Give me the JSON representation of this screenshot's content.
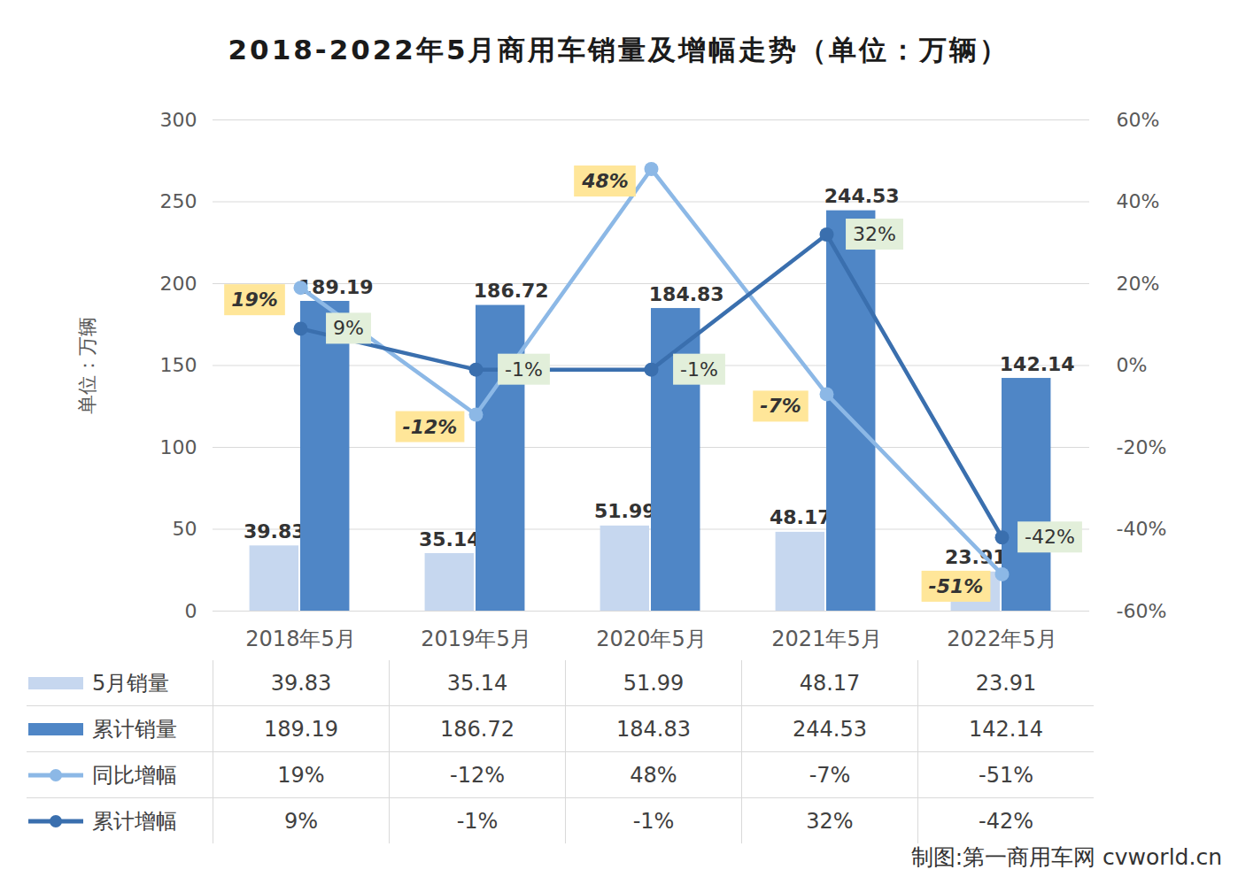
{
  "chart_data": {
    "type": "bar",
    "title": "2018-2022年5月商用车销量及增幅走势（单位：万辆）",
    "ylabel": "单位：万辆",
    "caption": "制图:第一商用车网 cvworld.cn",
    "categories": [
      "2018年5月",
      "2019年5月",
      "2020年5月",
      "2021年5月",
      "2022年5月"
    ],
    "series": [
      {
        "name": "5月销量",
        "type": "bar",
        "color": "#c6d7ef",
        "values": [
          39.83,
          35.14,
          51.99,
          48.17,
          23.91
        ]
      },
      {
        "name": "累计销量",
        "type": "bar",
        "color": "#4f86c6",
        "values": [
          189.19,
          186.72,
          184.83,
          244.53,
          142.14
        ]
      },
      {
        "name": "同比增幅",
        "type": "line",
        "axis": "y2",
        "color": "#8cb8e6",
        "marker": "circle",
        "values": [
          19,
          -12,
          48,
          -7,
          -51
        ],
        "value_labels": [
          "19%",
          "-12%",
          "48%",
          "-7%",
          "-51%"
        ]
      },
      {
        "name": "累计增幅",
        "type": "line",
        "axis": "y2",
        "color": "#3a6fae",
        "marker": "circle",
        "values": [
          9,
          -1,
          -1,
          32,
          -42
        ],
        "value_labels": [
          "9%",
          "-1%",
          "-1%",
          "32%",
          "-42%"
        ]
      }
    ],
    "ylim": [
      0,
      300
    ],
    "yticks": [
      0,
      50,
      100,
      150,
      200,
      250,
      300
    ],
    "y2lim": [
      -60,
      60
    ],
    "y2ticks": [
      {
        "value": -60,
        "label": "-60%"
      },
      {
        "value": -40,
        "label": "-40%"
      },
      {
        "value": -20,
        "label": "-20%"
      },
      {
        "value": 0,
        "label": "0%"
      },
      {
        "value": 20,
        "label": "20%"
      },
      {
        "value": 40,
        "label": "40%"
      },
      {
        "value": 60,
        "label": "60%"
      }
    ],
    "grid": true,
    "data_labels": true,
    "legend": "bottom"
  }
}
